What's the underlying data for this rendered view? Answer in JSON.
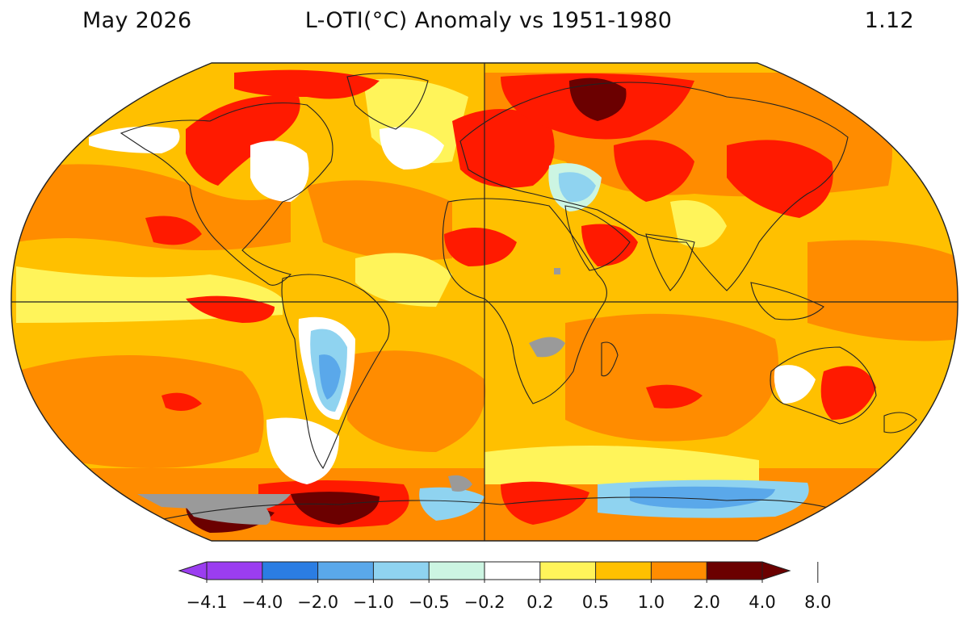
{
  "header": {
    "date": "May 2026",
    "title": "L-OTI(°C) Anomaly vs 1951-1980",
    "global_mean": "1.12"
  },
  "colorbar": {
    "tick_labels": [
      "−4.1",
      "−4.0",
      "−2.0",
      "−1.0",
      "−0.5",
      "−0.2",
      "0.2",
      "0.5",
      "1.0",
      "2.0",
      "4.0",
      "8.0"
    ],
    "bins": [
      {
        "color": "#9b3df0"
      },
      {
        "color": "#2b7de3"
      },
      {
        "color": "#5aa8ea"
      },
      {
        "color": "#8fd3f0"
      },
      {
        "color": "#ccf5e2"
      },
      {
        "color": "#ffffff"
      },
      {
        "color": "#fff45a"
      },
      {
        "color": "#ffc000"
      },
      {
        "color": "#ff8c00"
      },
      {
        "color": "#ff1a00"
      },
      {
        "color": "#6b0000"
      }
    ]
  },
  "map": {
    "projection": "Robinson",
    "missing_data_color": "#9a9a9a",
    "coastline_color": "#222222",
    "gridline_color": "#222222"
  }
}
